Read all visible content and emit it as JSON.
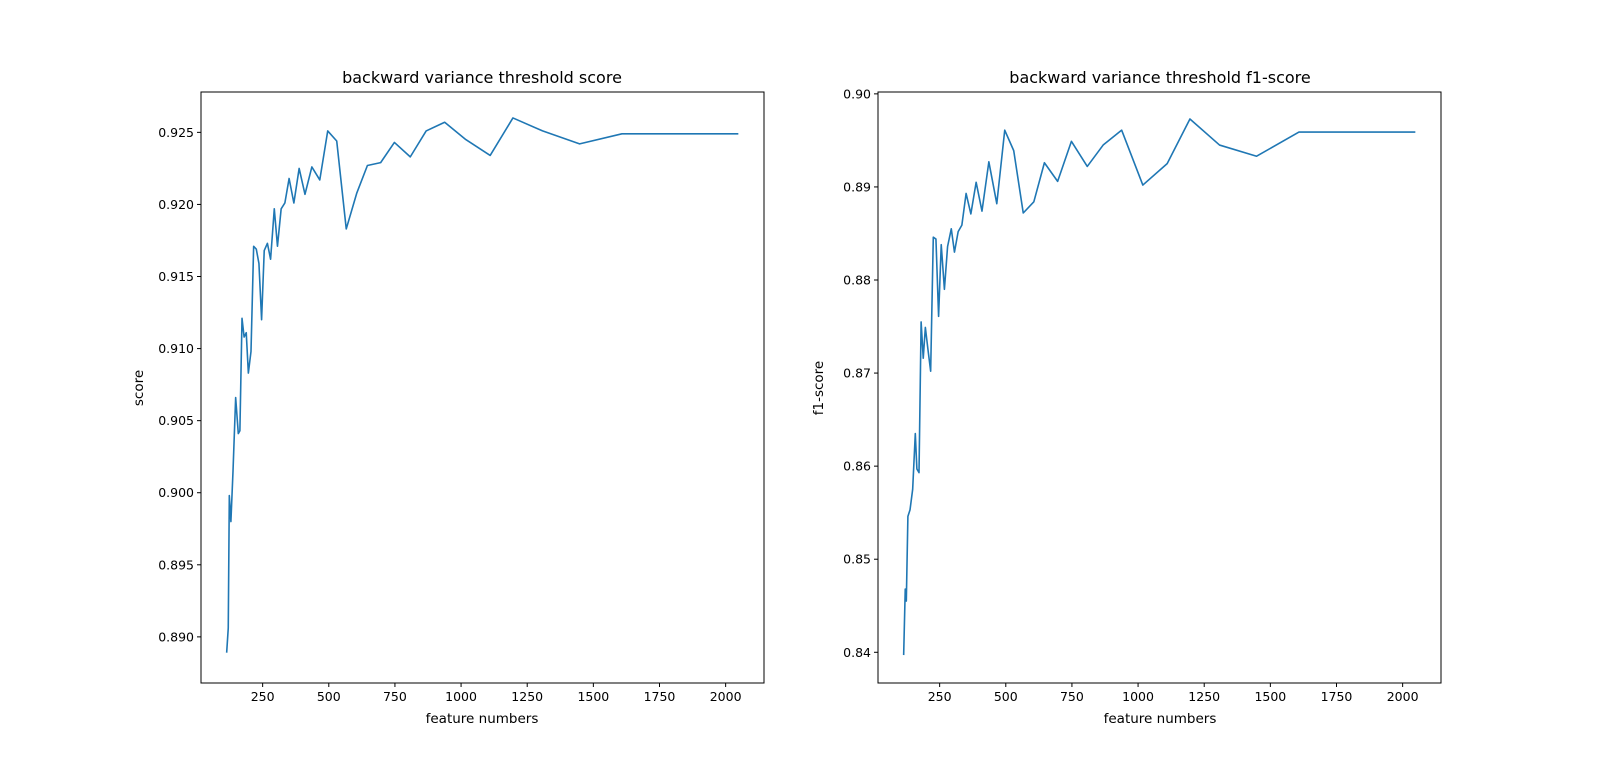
{
  "colors": {
    "line": "#1f77b4",
    "axes": "#000000",
    "background": "#ffffff"
  },
  "chart_data": [
    {
      "type": "line",
      "title": "backward variance threshold score",
      "xlabel": "feature numbers",
      "ylabel": "score",
      "grid": false,
      "xlim": [
        17,
        2145
      ],
      "ylim": [
        0.8868,
        0.9278
      ],
      "xticks": [
        250,
        500,
        750,
        1000,
        1250,
        1500,
        1750,
        2000
      ],
      "xtick_labels": [
        "250",
        "500",
        "750",
        "1000",
        "1250",
        "1500",
        "1750",
        "2000"
      ],
      "yticks": [
        0.89,
        0.895,
        0.9,
        0.905,
        0.91,
        0.915,
        0.92,
        0.925
      ],
      "ytick_labels": [
        "0.890",
        "0.895",
        "0.900",
        "0.905",
        "0.910",
        "0.915",
        "0.920",
        "0.925"
      ],
      "series": [
        {
          "x": [
            114,
            120,
            124,
            130,
            138,
            148,
            158,
            164,
            172,
            180,
            188,
            196,
            206,
            216,
            226,
            236,
            246,
            256,
            268,
            280,
            294,
            306,
            320,
            334,
            350,
            368,
            388,
            410,
            436,
            466,
            496,
            530,
            566,
            606,
            646,
            696,
            748,
            808,
            868,
            938,
            1018,
            1110,
            1196,
            1308,
            1448,
            1608,
            1776,
            1936,
            2012,
            2048
          ],
          "y": [
            0.8889,
            0.8906,
            0.8998,
            0.898,
            0.9015,
            0.9066,
            0.9041,
            0.9043,
            0.9121,
            0.9108,
            0.9111,
            0.9083,
            0.9098,
            0.9171,
            0.9169,
            0.9159,
            0.912,
            0.9168,
            0.9173,
            0.9162,
            0.9197,
            0.9171,
            0.9197,
            0.9201,
            0.9218,
            0.9201,
            0.9225,
            0.9207,
            0.9226,
            0.9217,
            0.9251,
            0.9244,
            0.9183,
            0.9208,
            0.9227,
            0.9229,
            0.9243,
            0.9233,
            0.9251,
            0.9257,
            0.9245,
            0.9234,
            0.926,
            0.9251,
            0.9242,
            0.9249,
            0.9249,
            0.9249,
            0.9249,
            0.9249
          ]
        }
      ]
    },
    {
      "type": "line",
      "title": "backward variance threshold f1-score",
      "xlabel": "feature numbers",
      "ylabel": "f1-score",
      "grid": false,
      "xlim": [
        17,
        2145
      ],
      "ylim": [
        0.8367,
        0.9002
      ],
      "xticks": [
        250,
        500,
        750,
        1000,
        1250,
        1500,
        1750,
        2000
      ],
      "xtick_labels": [
        "250",
        "500",
        "750",
        "1000",
        "1250",
        "1500",
        "1750",
        "2000"
      ],
      "yticks": [
        0.84,
        0.85,
        0.86,
        0.87,
        0.88,
        0.89,
        0.9
      ],
      "ytick_labels": [
        "0.84",
        "0.85",
        "0.86",
        "0.87",
        "0.88",
        "0.89",
        "0.90"
      ],
      "series": [
        {
          "x": [
            114,
            120,
            124,
            130,
            138,
            148,
            158,
            164,
            172,
            180,
            188,
            196,
            206,
            216,
            226,
            236,
            246,
            256,
            268,
            280,
            294,
            306,
            320,
            334,
            350,
            368,
            388,
            410,
            436,
            466,
            496,
            530,
            566,
            606,
            646,
            696,
            748,
            808,
            868,
            938,
            1018,
            1110,
            1196,
            1308,
            1448,
            1608,
            1776,
            1936,
            2012,
            2048
          ],
          "y": [
            0.8397,
            0.8468,
            0.8455,
            0.8546,
            0.8553,
            0.8575,
            0.8635,
            0.8597,
            0.8593,
            0.8755,
            0.8716,
            0.8749,
            0.8725,
            0.8702,
            0.8846,
            0.8844,
            0.8761,
            0.8838,
            0.879,
            0.8836,
            0.8855,
            0.883,
            0.8852,
            0.8859,
            0.8893,
            0.8871,
            0.8905,
            0.8874,
            0.8927,
            0.8882,
            0.8961,
            0.8939,
            0.8872,
            0.8884,
            0.8926,
            0.8906,
            0.8949,
            0.8922,
            0.8945,
            0.8961,
            0.8902,
            0.8925,
            0.8973,
            0.8945,
            0.8933,
            0.8959,
            0.8959,
            0.8959,
            0.8959,
            0.8959
          ]
        }
      ]
    }
  ]
}
